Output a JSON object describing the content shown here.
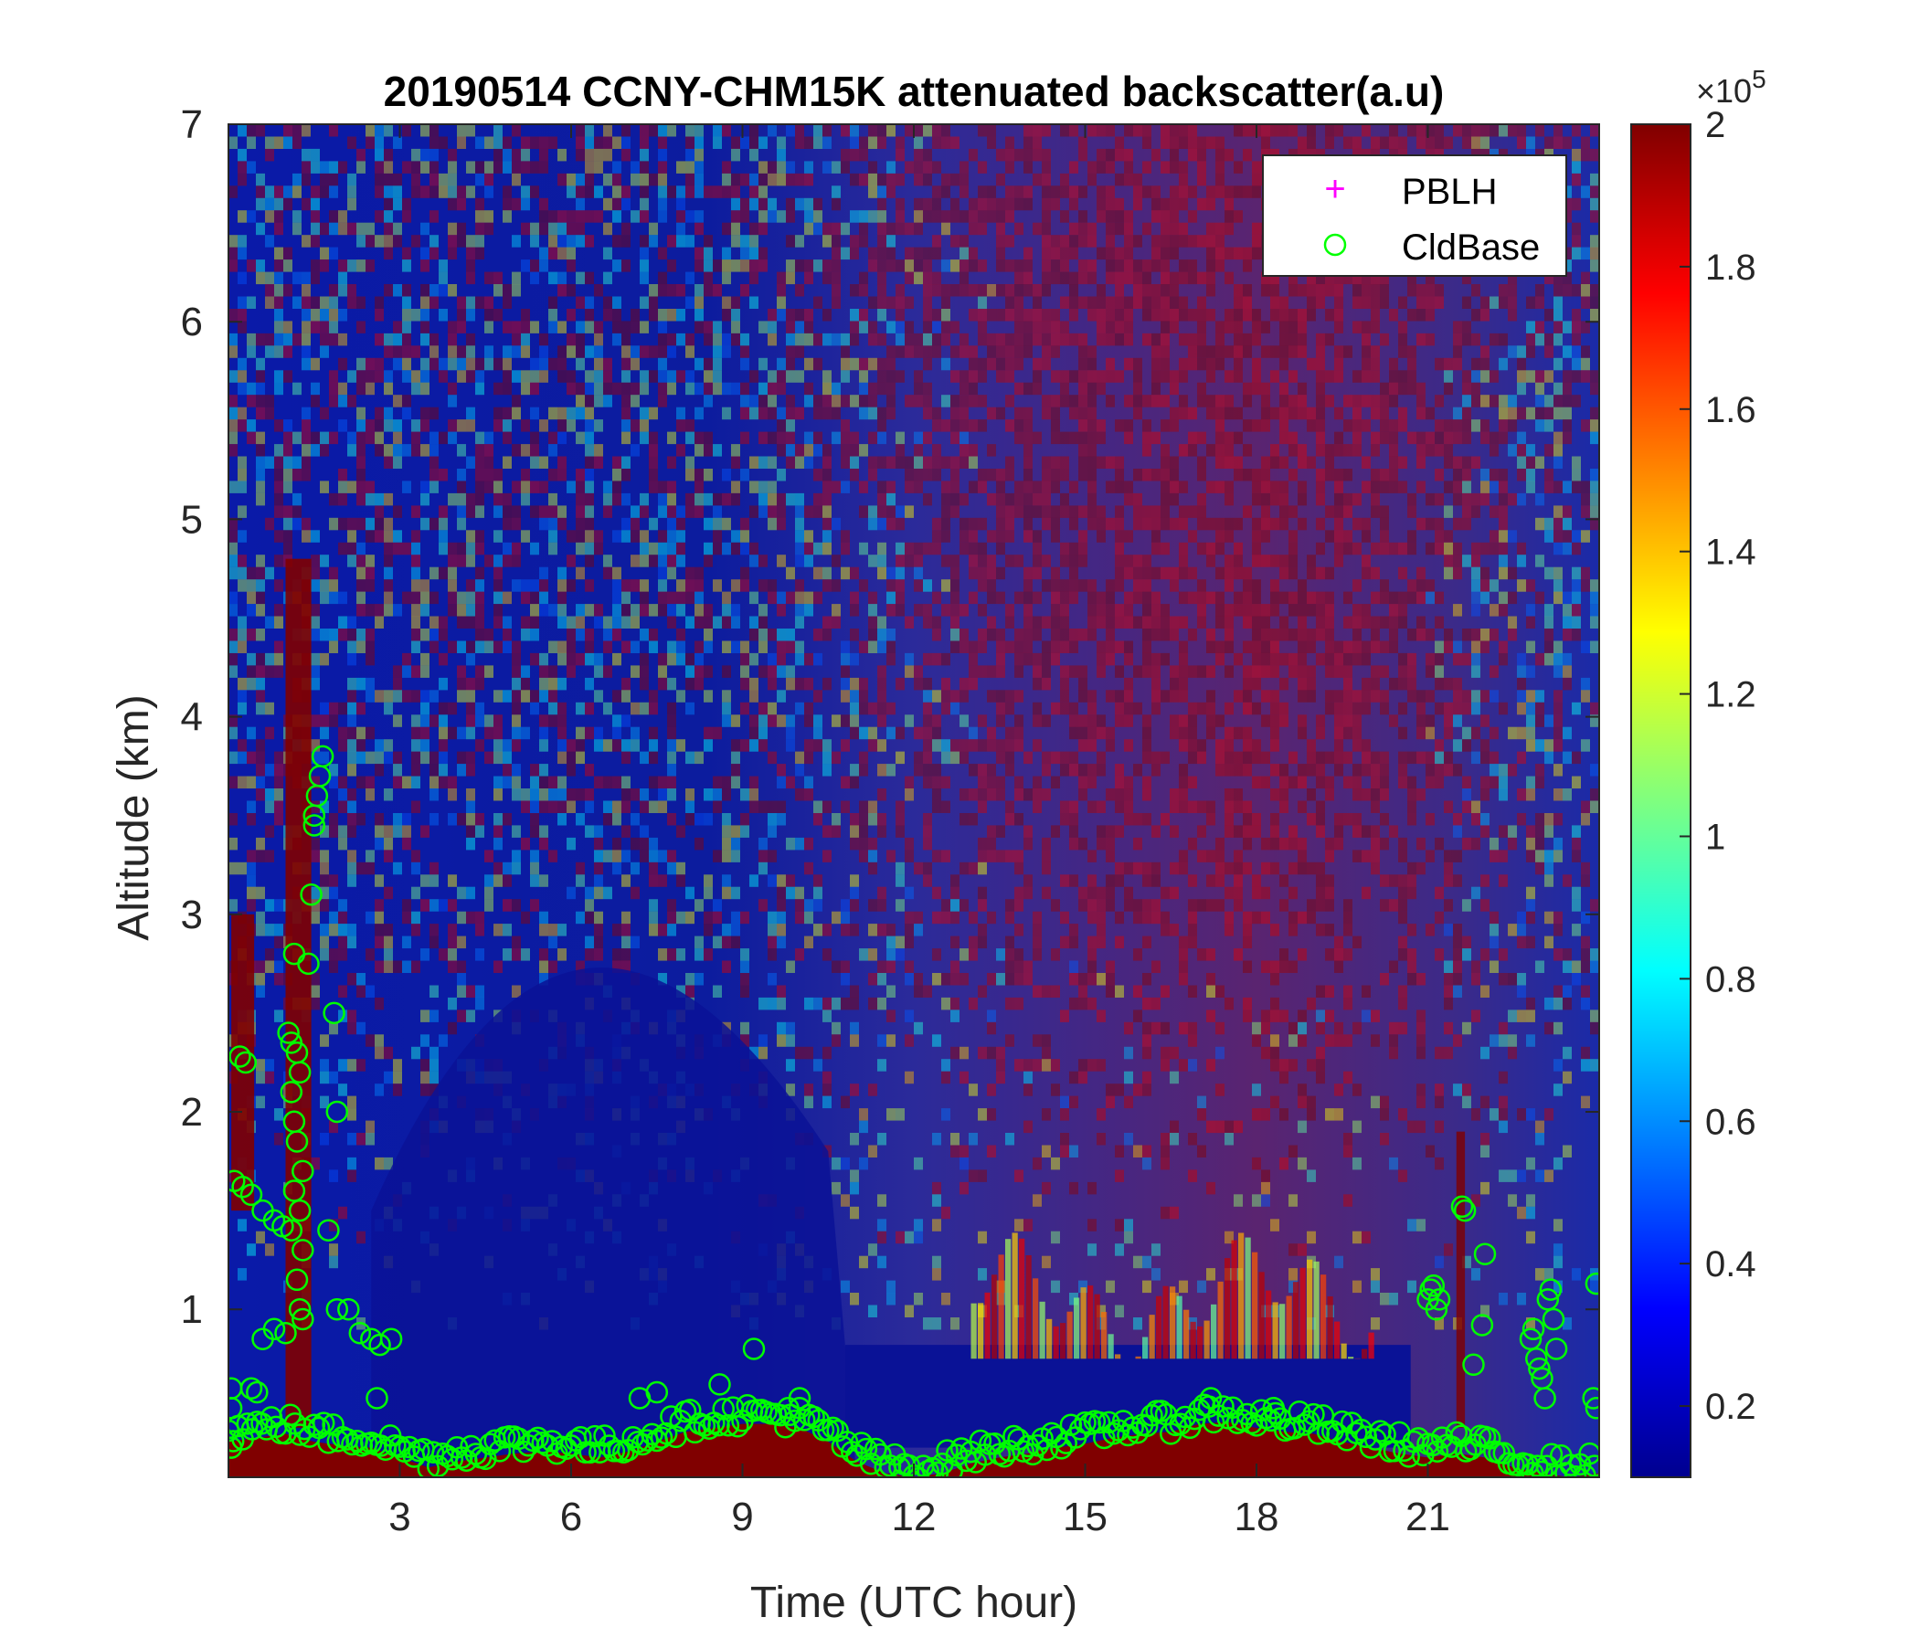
{
  "chart_data": {
    "type": "heatmap",
    "title": "20190514 CCNY-CHM15K attenuated backscatter(a.u)",
    "xlabel": "Time (UTC hour)",
    "ylabel": "Altitude (km)",
    "xlim": [
      0,
      24
    ],
    "ylim": [
      0.15,
      7
    ],
    "xticks": [
      3,
      6,
      9,
      12,
      15,
      18,
      21
    ],
    "yticks": [
      1,
      2,
      3,
      4,
      5,
      6,
      7
    ],
    "colorbar": {
      "colormap": "jet",
      "range": [
        0.1,
        2
      ],
      "ticks": [
        0.2,
        0.4,
        0.6,
        0.8,
        1,
        1.2,
        1.4,
        1.6,
        1.8,
        2
      ],
      "exponent_base": "×10",
      "exponent_power": "5"
    },
    "legend": {
      "location": "top-right",
      "entries": [
        {
          "label": "PBLH",
          "marker": "+",
          "color": "#ff00ff"
        },
        {
          "label": "CldBase",
          "marker": "o",
          "color": "#00ff00"
        }
      ]
    },
    "series": [
      {
        "name": "CldBase",
        "marker": "o",
        "color": "#00ff00",
        "points": [
          [
            0.1,
            1.65
          ],
          [
            0.25,
            1.62
          ],
          [
            0.4,
            1.58
          ],
          [
            0.6,
            1.5
          ],
          [
            0.8,
            1.45
          ],
          [
            0.95,
            1.42
          ],
          [
            1.1,
            1.4
          ],
          [
            0.2,
            2.28
          ],
          [
            0.3,
            2.25
          ],
          [
            1.05,
            2.4
          ],
          [
            1.1,
            2.35
          ],
          [
            1.2,
            2.3
          ],
          [
            1.25,
            2.2
          ],
          [
            1.1,
            2.1
          ],
          [
            1.15,
            1.95
          ],
          [
            1.2,
            1.85
          ],
          [
            1.3,
            1.7
          ],
          [
            1.15,
            1.6
          ],
          [
            1.25,
            1.5
          ],
          [
            1.3,
            1.3
          ],
          [
            1.2,
            1.15
          ],
          [
            1.25,
            1.0
          ],
          [
            1.3,
            0.95
          ],
          [
            1.4,
            2.75
          ],
          [
            1.15,
            2.8
          ],
          [
            1.45,
            3.1
          ],
          [
            1.5,
            3.5
          ],
          [
            1.55,
            3.6
          ],
          [
            1.6,
            3.7
          ],
          [
            1.65,
            3.8
          ],
          [
            1.5,
            3.45
          ],
          [
            1.75,
            1.4
          ],
          [
            1.85,
            2.5
          ],
          [
            1.9,
            2.0
          ],
          [
            1.9,
            1.0
          ],
          [
            2.1,
            1.0
          ],
          [
            0.6,
            0.85
          ],
          [
            0.8,
            0.9
          ],
          [
            1.0,
            0.88
          ],
          [
            2.3,
            0.88
          ],
          [
            2.5,
            0.85
          ],
          [
            2.65,
            0.82
          ],
          [
            2.85,
            0.85
          ],
          [
            21.0,
            1.05
          ],
          [
            21.05,
            1.1
          ],
          [
            21.1,
            1.12
          ],
          [
            21.2,
            1.05
          ],
          [
            21.15,
            1.0
          ],
          [
            21.6,
            1.52
          ],
          [
            21.65,
            1.5
          ],
          [
            21.8,
            0.72
          ],
          [
            22.0,
            1.28
          ],
          [
            21.95,
            0.92
          ],
          [
            22.8,
            0.85
          ],
          [
            22.85,
            0.9
          ],
          [
            22.9,
            0.75
          ],
          [
            22.95,
            0.7
          ],
          [
            23.0,
            0.65
          ],
          [
            23.1,
            1.05
          ],
          [
            23.15,
            1.1
          ],
          [
            23.2,
            0.95
          ],
          [
            23.05,
            0.55
          ],
          [
            23.25,
            0.8
          ],
          [
            23.95,
            1.13
          ],
          [
            23.9,
            0.55
          ],
          [
            23.95,
            0.5
          ],
          [
            10.0,
            0.55
          ],
          [
            9.8,
            0.5
          ],
          [
            9.2,
            0.8
          ],
          [
            8.6,
            0.62
          ],
          [
            7.2,
            0.55
          ],
          [
            7.5,
            0.58
          ],
          [
            17.2,
            0.55
          ],
          [
            18.3,
            0.5
          ],
          [
            0.05,
            0.6
          ],
          [
            0.05,
            0.5
          ],
          [
            0.05,
            0.3
          ],
          [
            0.4,
            0.6
          ],
          [
            0.5,
            0.58
          ],
          [
            2.6,
            0.55
          ]
        ],
        "baseline": [
          [
            0,
            0.38
          ],
          [
            0.5,
            0.4
          ],
          [
            1,
            0.42
          ],
          [
            1.5,
            0.38
          ],
          [
            2,
            0.36
          ],
          [
            2.5,
            0.35
          ],
          [
            3,
            0.3
          ],
          [
            3.5,
            0.25
          ],
          [
            4,
            0.28
          ],
          [
            4.5,
            0.3
          ],
          [
            5,
            0.32
          ],
          [
            5.5,
            0.33
          ],
          [
            6,
            0.32
          ],
          [
            6.5,
            0.3
          ],
          [
            7,
            0.33
          ],
          [
            7.5,
            0.38
          ],
          [
            8,
            0.43
          ],
          [
            8.5,
            0.45
          ],
          [
            9,
            0.47
          ],
          [
            9.5,
            0.47
          ],
          [
            10,
            0.45
          ],
          [
            10.5,
            0.38
          ],
          [
            11,
            0.28
          ],
          [
            11.5,
            0.22
          ],
          [
            12,
            0.2
          ],
          [
            12.5,
            0.22
          ],
          [
            13,
            0.27
          ],
          [
            13.5,
            0.3
          ],
          [
            14,
            0.32
          ],
          [
            14.5,
            0.35
          ],
          [
            15,
            0.37
          ],
          [
            15.5,
            0.4
          ],
          [
            16,
            0.42
          ],
          [
            16.5,
            0.43
          ],
          [
            17,
            0.47
          ],
          [
            17.5,
            0.48
          ],
          [
            18,
            0.45
          ],
          [
            18.5,
            0.43
          ],
          [
            19,
            0.42
          ],
          [
            19.5,
            0.38
          ],
          [
            20,
            0.35
          ],
          [
            20.5,
            0.32
          ],
          [
            21,
            0.3
          ],
          [
            21.5,
            0.32
          ],
          [
            22,
            0.3
          ],
          [
            22.5,
            0.25
          ],
          [
            23,
            0.22
          ],
          [
            23.5,
            0.2
          ],
          [
            24,
            0.22
          ]
        ]
      },
      {
        "name": "PBLH",
        "marker": "+",
        "color": "#ff00ff",
        "points": []
      }
    ]
  }
}
